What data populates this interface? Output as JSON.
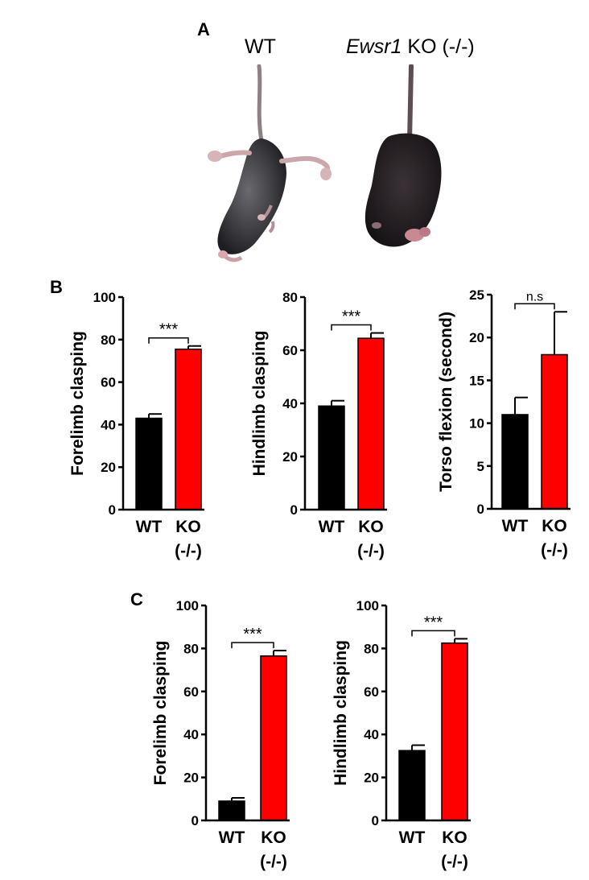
{
  "panels": {
    "a": {
      "letter": "A",
      "wt_label": "WT",
      "ko_gene": "Ewsr1",
      "ko_suffix": " KO (-/-)"
    },
    "b": {
      "letter": "B"
    },
    "c": {
      "letter": "C"
    }
  },
  "colors": {
    "wt": "#000000",
    "ko": "#ff0000",
    "axis": "#000000"
  },
  "chart_data": [
    {
      "id": "b1",
      "type": "bar",
      "ylabel": "Forelimb clasping",
      "ylim": [
        0,
        100
      ],
      "yticks": [
        0,
        20,
        40,
        60,
        80,
        100
      ],
      "categories": [
        {
          "line1": "WT",
          "line2": ""
        },
        {
          "line1": "KO",
          "line2": "(-/-)"
        }
      ],
      "values": [
        43,
        75.5
      ],
      "errors": [
        2,
        1.5
      ],
      "significance": "***"
    },
    {
      "id": "b2",
      "type": "bar",
      "ylabel": "Hindlimb clasping",
      "ylim": [
        0,
        80
      ],
      "yticks": [
        0,
        20,
        40,
        60,
        80
      ],
      "categories": [
        {
          "line1": "WT",
          "line2": ""
        },
        {
          "line1": "KO",
          "line2": "(-/-)"
        }
      ],
      "values": [
        39,
        64.5
      ],
      "errors": [
        2,
        2
      ],
      "significance": "***"
    },
    {
      "id": "b3",
      "type": "bar",
      "ylabel": "Torso flexion (second)",
      "ylim": [
        0,
        25
      ],
      "yticks": [
        0,
        5,
        10,
        15,
        20,
        25
      ],
      "categories": [
        {
          "line1": "WT",
          "line2": ""
        },
        {
          "line1": "KO",
          "line2": "(-/-)"
        }
      ],
      "values": [
        11,
        18
      ],
      "errors": [
        2,
        5
      ],
      "significance": "n.s"
    },
    {
      "id": "c1",
      "type": "bar",
      "ylabel": "Forelimb clasping",
      "ylim": [
        0,
        100
      ],
      "yticks": [
        0,
        20,
        40,
        60,
        80,
        100
      ],
      "categories": [
        {
          "line1": "WT",
          "line2": ""
        },
        {
          "line1": "KO",
          "line2": "(-/-)"
        }
      ],
      "values": [
        9,
        76.5
      ],
      "errors": [
        1.5,
        2.5
      ],
      "significance": "***"
    },
    {
      "id": "c2",
      "type": "bar",
      "ylabel": "Hindlimb clasping",
      "ylim": [
        0,
        100
      ],
      "yticks": [
        0,
        20,
        40,
        60,
        80,
        100
      ],
      "categories": [
        {
          "line1": "WT",
          "line2": ""
        },
        {
          "line1": "KO",
          "line2": "(-/-)"
        }
      ],
      "values": [
        32.5,
        82.5
      ],
      "errors": [
        2.5,
        2
      ],
      "significance": "***"
    }
  ]
}
